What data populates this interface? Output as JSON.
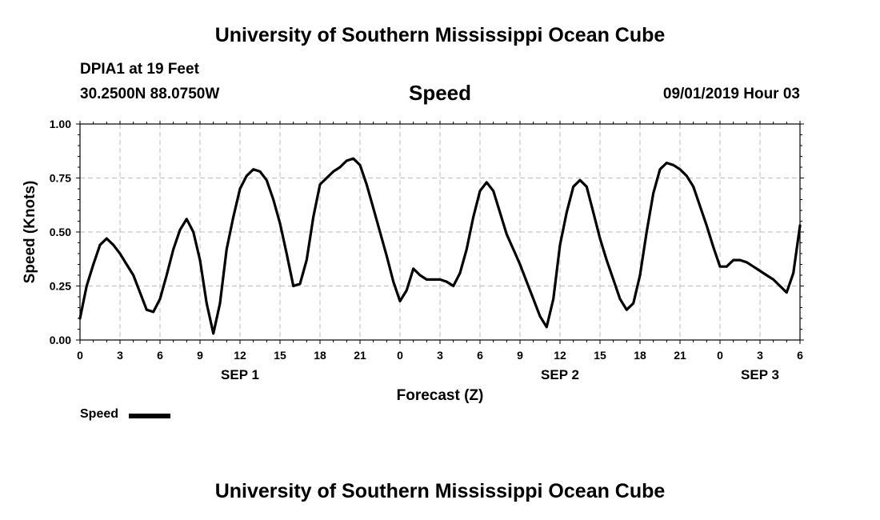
{
  "header": {
    "title": "University of Southern Mississippi Ocean Cube",
    "station": "DPIA1 at 19 Feet",
    "coords": "30.2500N 88.0750W",
    "chart_title": "Speed",
    "datetime": "09/01/2019 Hour 03",
    "footer_title": "University of Southern Mississippi Ocean Cube"
  },
  "legend": {
    "label": "Speed",
    "color": "#000000"
  },
  "chart_data": {
    "type": "line",
    "title": "Speed",
    "xlabel": "Forecast (Z)",
    "ylabel": "Speed (Knots)",
    "xlim": [
      0,
      54
    ],
    "ylim": [
      0,
      1
    ],
    "grid": true,
    "legend_position": "bottom-left",
    "y_ticks": [
      "0.00",
      "0.25",
      "0.50",
      "0.75",
      "1.00"
    ],
    "x_ticks": [
      "0",
      "3",
      "6",
      "9",
      "12",
      "15",
      "18",
      "21",
      "0",
      "3",
      "6",
      "9",
      "12",
      "15",
      "18",
      "21",
      "0",
      "3",
      "6"
    ],
    "day_labels": [
      {
        "label": "SEP 1",
        "at_hour": 12
      },
      {
        "label": "SEP 2",
        "at_hour": 36
      },
      {
        "label": "SEP 3",
        "at_hour": 51
      }
    ],
    "series": [
      {
        "name": "Speed",
        "color": "#000000",
        "x": [
          0,
          0.5,
          1,
          1.5,
          2,
          2.5,
          3,
          3.5,
          4,
          4.5,
          5,
          5.5,
          6,
          6.5,
          7,
          7.5,
          8,
          8.5,
          9,
          9.5,
          10,
          10.5,
          11,
          11.5,
          12,
          12.5,
          13,
          13.5,
          14,
          14.5,
          15,
          15.5,
          16,
          16.5,
          17,
          17.5,
          18,
          18.5,
          19,
          19.5,
          20,
          20.5,
          21,
          21.5,
          22,
          22.5,
          23,
          23.5,
          24,
          24.5,
          25,
          25.5,
          26,
          26.5,
          27,
          27.5,
          28,
          28.5,
          29,
          29.5,
          30,
          30.5,
          31,
          31.5,
          32,
          32.5,
          33,
          33.5,
          34,
          34.5,
          35,
          35.5,
          36,
          36.5,
          37,
          37.5,
          38,
          38.5,
          39,
          39.5,
          40,
          40.5,
          41,
          41.5,
          42,
          42.5,
          43,
          43.5,
          44,
          44.5,
          45,
          45.5,
          46,
          46.5,
          47,
          47.5,
          48,
          48.5,
          49,
          49.5,
          50,
          50.5,
          51,
          51.5,
          52,
          52.5,
          53,
          53.5,
          54
        ],
        "y": [
          0.1,
          0.25,
          0.35,
          0.44,
          0.47,
          0.44,
          0.4,
          0.35,
          0.3,
          0.22,
          0.14,
          0.13,
          0.19,
          0.3,
          0.42,
          0.51,
          0.56,
          0.5,
          0.37,
          0.17,
          0.03,
          0.17,
          0.42,
          0.57,
          0.7,
          0.76,
          0.79,
          0.78,
          0.74,
          0.65,
          0.54,
          0.4,
          0.25,
          0.26,
          0.37,
          0.57,
          0.72,
          0.75,
          0.78,
          0.8,
          0.83,
          0.84,
          0.81,
          0.72,
          0.61,
          0.5,
          0.39,
          0.27,
          0.18,
          0.23,
          0.33,
          0.3,
          0.28,
          0.28,
          0.28,
          0.27,
          0.25,
          0.31,
          0.42,
          0.57,
          0.69,
          0.73,
          0.69,
          0.59,
          0.49,
          0.42,
          0.35,
          0.27,
          0.19,
          0.11,
          0.06,
          0.19,
          0.44,
          0.59,
          0.71,
          0.74,
          0.71,
          0.59,
          0.47,
          0.37,
          0.28,
          0.19,
          0.14,
          0.17,
          0.3,
          0.5,
          0.68,
          0.79,
          0.82,
          0.81,
          0.79,
          0.76,
          0.71,
          0.62,
          0.53,
          0.43,
          0.34,
          0.34,
          0.37,
          0.37,
          0.36,
          0.34,
          0.32,
          0.3,
          0.28,
          0.25,
          0.22,
          0.31,
          0.53
        ]
      }
    ]
  }
}
